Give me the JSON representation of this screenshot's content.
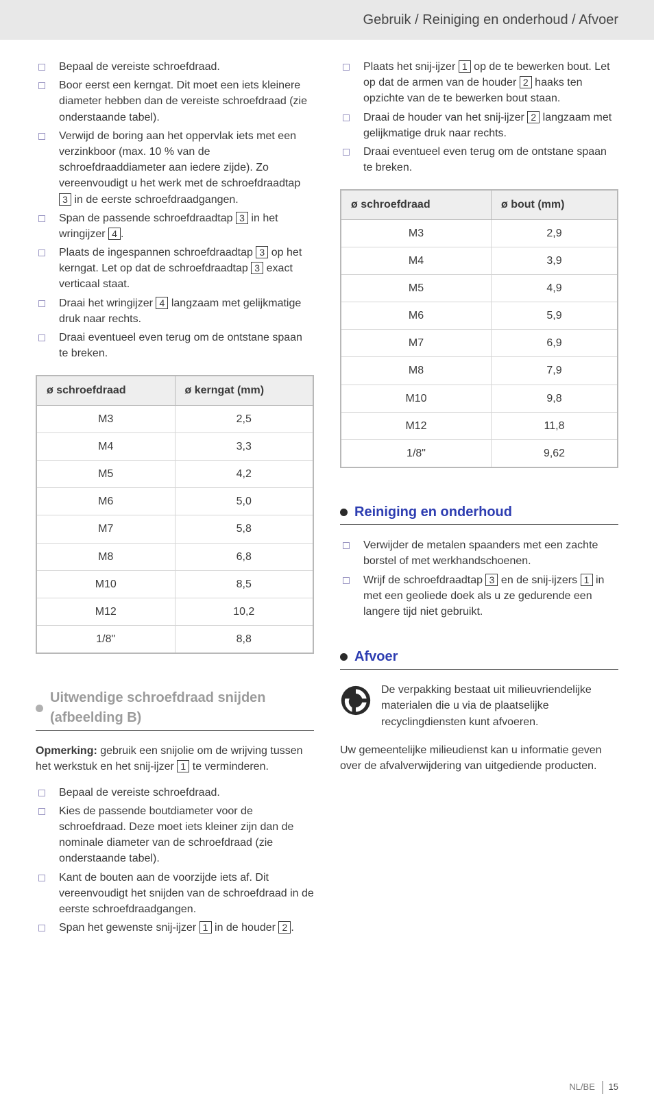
{
  "header": "Gebruik / Reiniging en onderhoud / Afvoer",
  "left": {
    "list1": {
      "i0": "Bepaal de vereiste schroefdraad.",
      "i1": "Boor eerst een kerngat. Dit moet een iets kleinere diameter hebben dan de vereiste schroefdraad (zie onderstaande tabel).",
      "i2a": "Verwijd de boring aan het oppervlak iets met een verzinkboor (max. 10 % van de schroefdraaddiameter aan iedere zijde). Zo vereenvoudigt u het werk met de schroefdraadtap ",
      "i2b": " in de eerste schroefdraadgangen.",
      "i3a": "Span de passende schroefdraadtap ",
      "i3b": " in het wringijzer ",
      "i3c": ".",
      "i4a": "Plaats de ingespannen schroefdraadtap ",
      "i4b": " op het kerngat. Let op dat de schroefdraadtap ",
      "i4c": " exact verticaal staat.",
      "i5a": "Draai het wringijzer ",
      "i5b": " langzaam met gelijkmatige druk naar rechts.",
      "i6": "Draai eventueel even terug om de ontstane spaan te breken."
    },
    "table": {
      "h0": "ø schroefdraad",
      "h1": "ø kerngat (mm)",
      "rows": [
        [
          "M3",
          "2,5"
        ],
        [
          "M4",
          "3,3"
        ],
        [
          "M5",
          "4,2"
        ],
        [
          "M6",
          "5,0"
        ],
        [
          "M7",
          "5,8"
        ],
        [
          "M8",
          "6,8"
        ],
        [
          "M10",
          "8,5"
        ],
        [
          "M12",
          "10,2"
        ],
        [
          "1/8\"",
          "8,8"
        ]
      ]
    },
    "section2": {
      "title": "Uitwendige schroefdraad snijden (afbeelding B)",
      "note_lead": "Opmerking:",
      "note_a": " gebruik een snijolie om de wrijving tussen het werkstuk en het snij-ijzer ",
      "note_b": " te verminderen.",
      "list": {
        "i0": "Bepaal de vereiste schroefdraad.",
        "i1": "Kies de passende boutdiameter voor de schroefdraad. Deze moet iets kleiner zijn dan de nominale diameter van de schroefdraad (zie onderstaande tabel).",
        "i2": "Kant de bouten aan de voorzijde iets af. Dit vereenvoudigt het snijden van de schroefdraad in de eerste schroefdraadgangen.",
        "i3a": "Span het gewenste snij-ijzer ",
        "i3b": " in de houder ",
        "i3c": "."
      }
    }
  },
  "right": {
    "list1": {
      "i0a": "Plaats het snij-ijzer ",
      "i0b": " op de te bewerken bout. Let op dat de armen van de houder ",
      "i0c": " haaks ten opzichte van de te bewerken bout staan.",
      "i1a": "Draai de houder van het snij-ijzer ",
      "i1b": " langzaam met gelijkmatige druk naar rechts.",
      "i2": "Draai eventueel even terug om de ontstane spaan te breken."
    },
    "table": {
      "h0": "ø schroefdraad",
      "h1": "ø bout (mm)",
      "rows": [
        [
          "M3",
          "2,9"
        ],
        [
          "M4",
          "3,9"
        ],
        [
          "M5",
          "4,9"
        ],
        [
          "M6",
          "5,9"
        ],
        [
          "M7",
          "6,9"
        ],
        [
          "M8",
          "7,9"
        ],
        [
          "M10",
          "9,8"
        ],
        [
          "M12",
          "11,8"
        ],
        [
          "1/8\"",
          "9,62"
        ]
      ]
    },
    "sectionR": {
      "title": "Reiniging en onderhoud",
      "i0": "Verwijder de metalen spaanders met een zachte borstel of met werkhandschoenen.",
      "i1a": "Wrijf de schroefdraadtap ",
      "i1b": " en de snij-ijzers ",
      "i1c": " in met een geoliede doek als u ze gedurende een langere tijd niet gebruikt."
    },
    "sectionA": {
      "title": "Afvoer",
      "recycle": "De verpakking bestaat uit milieuvriendelijke materialen die u via de plaatselijke recyclingdiensten kunt afvoeren.",
      "para": "Uw gemeentelijke milieudienst kan u informatie geven over de afvalverwijdering van uitgediende producten."
    }
  },
  "ref": {
    "r1": "1",
    "r2": "2",
    "r3": "3",
    "r4": "4"
  },
  "footer": {
    "locale": "NL/BE",
    "page": "15"
  }
}
